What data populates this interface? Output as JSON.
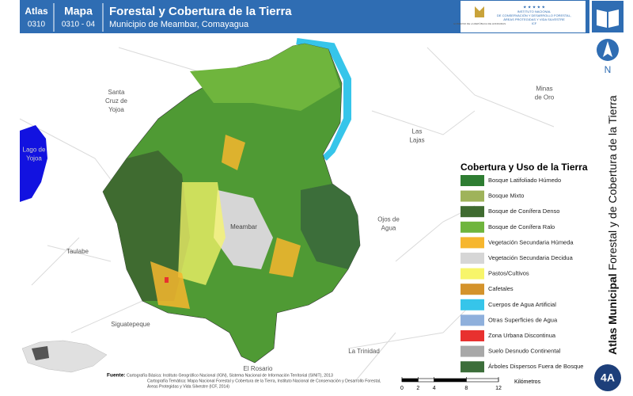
{
  "header": {
    "atlas_label": "Atlas",
    "atlas_code": "0310",
    "map_label": "Mapa",
    "map_code": "0310 - 04",
    "title": "Forestal y Cobertura de la Tierra",
    "subtitle": "Municipio de Meambar, Comayagua",
    "logo_left": "GOBIERNO DE LA REPÚBLICA DE HONDURAS",
    "logo_right": [
      "INSTITUTO NACIONAL",
      "DE CONSERVACIÓN Y DESARROLLO FORESTAL,",
      "ÁREAS PROTEGIDAS Y VIDA SILVESTRE",
      "ICF"
    ]
  },
  "places": [
    {
      "lines": [
        "Santa",
        "Cruz de",
        "Yojoa"
      ]
    },
    {
      "lines": [
        "Lago de",
        "Yojoa"
      ]
    },
    {
      "lines": [
        "Las",
        "Lajas"
      ]
    },
    {
      "lines": [
        "Minas",
        "de Oro"
      ]
    },
    {
      "lines": [
        "Meambar"
      ]
    },
    {
      "lines": [
        "Taulabe"
      ]
    },
    {
      "lines": [
        "Ojos de",
        "Agua"
      ]
    },
    {
      "lines": [
        "Siguatepeque"
      ]
    },
    {
      "lines": [
        "La Trinidad"
      ]
    },
    {
      "lines": [
        "El Rosario"
      ]
    }
  ],
  "legend": {
    "title": "Cobertura y Uso de la Tierra",
    "items": [
      {
        "label": "Bosque Latifoliado Húmedo",
        "color": "#2e7d32"
      },
      {
        "label": "Bosque Mixto",
        "color": "#9fb35a"
      },
      {
        "label": "Bosque de Conífera Denso",
        "color": "#3f6b30"
      },
      {
        "label": "Bosque de Conífera Ralo",
        "color": "#6fb53d"
      },
      {
        "label": "Vegetación Secundaria Húmeda",
        "color": "#f6b62e"
      },
      {
        "label": "Vegetación Secundaria Decidua",
        "color": "#d6d6d6"
      },
      {
        "label": "Pastos/Cultivos",
        "color": "#f7f56a"
      },
      {
        "label": "Cafetales",
        "color": "#d4932c"
      },
      {
        "label": "Cuerpos de Agua Artificial",
        "color": "#36c5ea"
      },
      {
        "label": "Otras Superficies de Agua",
        "color": "#8fb0dc"
      },
      {
        "label": "Zona Urbana Discontinua",
        "color": "#e8312f"
      },
      {
        "label": "Suelo Desnudo Continental",
        "color": "#a8a8a8"
      },
      {
        "label": "Árboles Dispersos Fuera de Bosque",
        "color": "#3c6e3a"
      }
    ]
  },
  "side_title": {
    "bold": "Atlas Municipal",
    "regular": "Forestal y de Cobertura de la Tierra"
  },
  "north": "N",
  "badge": "4A",
  "scale": {
    "ticks": [
      0,
      2,
      4,
      8,
      12
    ],
    "unit": "Kilómetros"
  },
  "sources": {
    "label": "Fuente:",
    "lines": [
      "Cartografía Básica: Instituto Geográfico Nacional (IGN), Sistema Nacional de Información Territorial (SINIT), 2013",
      "Cartografía Temática: Mapa Nacional Forestal y Cobertura de la Tierra, Instituto Nacional de Conservación y Desarrollo Forestal,",
      "Áreas Protegidas y Vida Silvestre (ICF, 2014)"
    ]
  }
}
